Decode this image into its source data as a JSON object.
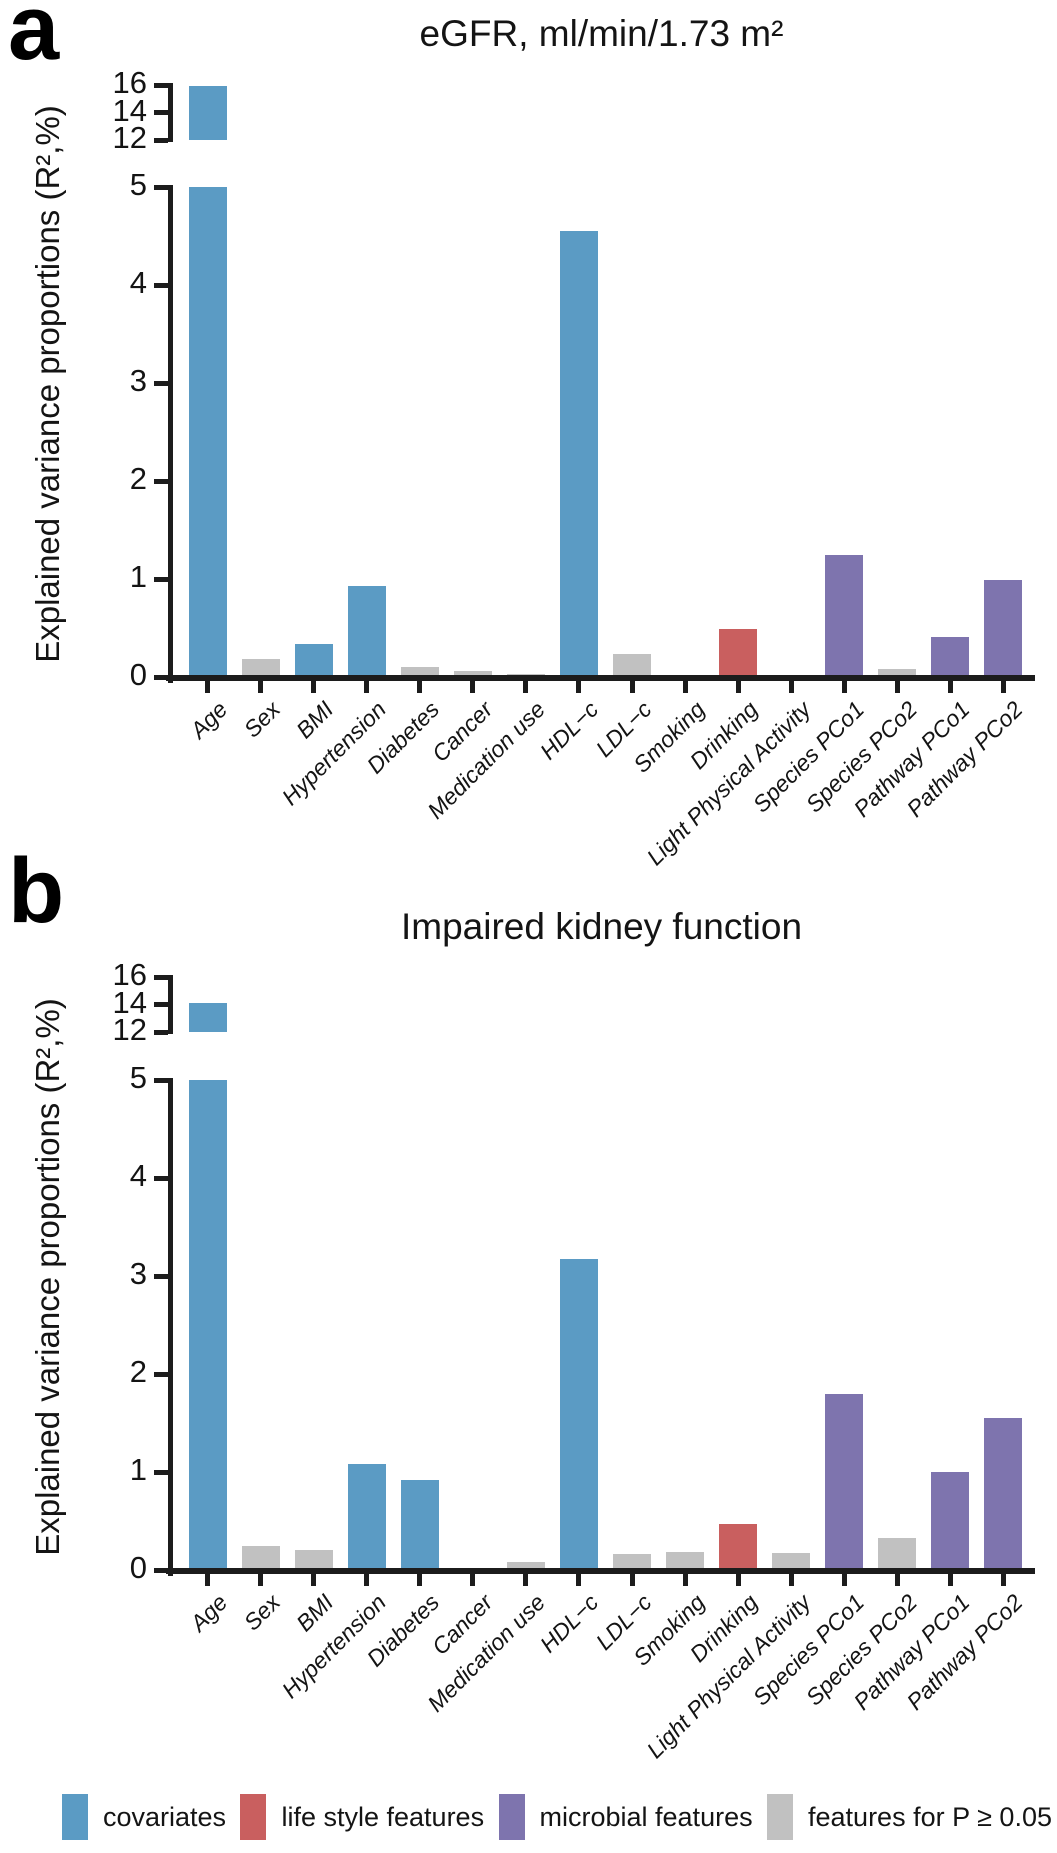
{
  "figure": {
    "panel_a_letter": "a",
    "panel_b_letter": "b"
  },
  "legend": {
    "items": [
      {
        "label": "covariates",
        "group": "covariates",
        "color": "#5b9bc4"
      },
      {
        "label": "life style features",
        "group": "lifestyle",
        "color": "#c95f5f"
      },
      {
        "label": "microbial features",
        "group": "microbial",
        "color": "#7e74ae"
      },
      {
        "label": "features for P ≥ 0.05",
        "group": "ns",
        "color": "#c1c1c1"
      }
    ],
    "colors": {
      "covariates": "#5b9bc4",
      "lifestyle": "#c95f5f",
      "microbial": "#7e74ae",
      "ns": "#c1c1c1"
    }
  },
  "chart_data": [
    {
      "type": "bar",
      "panel": "a",
      "title": "eGFR, ml/min/1.73 m²",
      "ylabel": "Explained variance proportions (R²,%)",
      "broken_axis": true,
      "y_top_range": [
        12,
        16
      ],
      "y_top_ticks": [
        16,
        14,
        12
      ],
      "y_main_range": [
        0,
        5
      ],
      "y_main_ticks": [
        5,
        4,
        3,
        2,
        1,
        0
      ],
      "grid": false,
      "categories": [
        "Age",
        "Sex",
        "BMI",
        "Hypertension",
        "Diabetes",
        "Cancer",
        "Medication use",
        "HDL−c",
        "LDL−c",
        "Smoking",
        "Drinking",
        "Light Physical Activity",
        "Species PCo1",
        "Species PCo2",
        "Pathway PCo1",
        "Pathway PCo2"
      ],
      "values": [
        15.9,
        0.18,
        0.34,
        0.93,
        0.1,
        0.06,
        0.03,
        4.55,
        0.23,
        0,
        0.49,
        0,
        1.24,
        0.08,
        0.41,
        0.99
      ],
      "groups": [
        "covariates",
        "ns",
        "covariates",
        "covariates",
        "ns",
        "ns",
        "ns",
        "covariates",
        "ns",
        "none",
        "lifestyle",
        "none",
        "microbial",
        "ns",
        "microbial",
        "microbial"
      ]
    },
    {
      "type": "bar",
      "panel": "b",
      "title": "Impaired kidney function",
      "ylabel": "Explained variance proportions (R²,%)",
      "broken_axis": true,
      "y_top_range": [
        12,
        16
      ],
      "y_top_ticks": [
        16,
        14,
        12
      ],
      "y_main_range": [
        0,
        5
      ],
      "y_main_ticks": [
        5,
        4,
        3,
        2,
        1,
        0
      ],
      "grid": false,
      "categories": [
        "Age",
        "Sex",
        "BMI",
        "Hypertension",
        "Diabetes",
        "Cancer",
        "Medication use",
        "HDL−c",
        "LDL−c",
        "Smoking",
        "Drinking",
        "Light Physical Activity",
        "Species PCo1",
        "Species PCo2",
        "Pathway PCo1",
        "Pathway PCo2"
      ],
      "values": [
        14.1,
        0.24,
        0.2,
        1.08,
        0.92,
        0,
        0.08,
        3.17,
        0.16,
        0.18,
        0.47,
        0.17,
        1.8,
        0.33,
        1.0,
        1.55
      ],
      "groups": [
        "covariates",
        "ns",
        "ns",
        "covariates",
        "covariates",
        "none",
        "ns",
        "covariates",
        "ns",
        "ns",
        "lifestyle",
        "ns",
        "microbial",
        "ns",
        "microbial",
        "microbial"
      ]
    }
  ]
}
